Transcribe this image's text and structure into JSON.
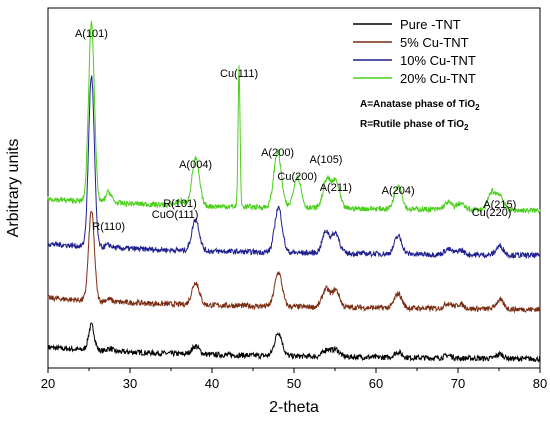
{
  "chart_data": {
    "type": "line",
    "title": "",
    "xlabel": "2-theta",
    "ylabel": "Arbitrary units",
    "xlim": [
      20,
      80
    ],
    "xticks": [
      "20",
      "30",
      "40",
      "50",
      "60",
      "70",
      "80"
    ],
    "yticks_visible": false,
    "grid": false,
    "legend_position": "top-right",
    "series": [
      {
        "name": "Pure -TNT",
        "color": "#000000",
        "baseline": 0.0,
        "peaks": [
          [
            25.3,
            0.28
          ],
          [
            27.5,
            0.03
          ],
          [
            38.0,
            0.09
          ],
          [
            48.1,
            0.26
          ],
          [
            54.0,
            0.08
          ],
          [
            55.1,
            0.08
          ],
          [
            62.7,
            0.06
          ],
          [
            68.8,
            0.03
          ],
          [
            75.1,
            0.05
          ]
        ]
      },
      {
        "name": "5% Cu-TNT",
        "color": "#7b2d12",
        "baseline": 0.55,
        "peaks": [
          [
            25.3,
            1.0
          ],
          [
            27.4,
            0.03
          ],
          [
            38.0,
            0.25
          ],
          [
            48.1,
            0.38
          ],
          [
            53.9,
            0.2
          ],
          [
            55.1,
            0.19
          ],
          [
            62.7,
            0.16
          ],
          [
            68.8,
            0.06
          ],
          [
            70.3,
            0.05
          ],
          [
            75.1,
            0.1
          ]
        ]
      },
      {
        "name": "10% Cu-TNT",
        "color": "#1f1f8f",
        "baseline": 1.15,
        "peaks": [
          [
            25.3,
            1.9
          ],
          [
            27.4,
            0.03
          ],
          [
            38.0,
            0.35
          ],
          [
            48.1,
            0.5
          ],
          [
            53.9,
            0.24
          ],
          [
            55.1,
            0.22
          ],
          [
            62.7,
            0.2
          ],
          [
            68.8,
            0.06
          ],
          [
            70.3,
            0.05
          ],
          [
            75.1,
            0.1
          ]
        ]
      },
      {
        "name": "20% Cu-TNT",
        "color": "#4ccf1c",
        "baseline": 1.65,
        "peaks": [
          [
            25.3,
            2.0
          ],
          [
            27.4,
            0.12
          ],
          [
            36.1,
            0.05
          ],
          [
            38.0,
            0.52
          ],
          [
            43.3,
            1.55
          ],
          [
            48.0,
            0.62
          ],
          [
            50.4,
            0.35
          ],
          [
            54.0,
            0.32
          ],
          [
            55.1,
            0.3
          ],
          [
            62.7,
            0.27
          ],
          [
            68.8,
            0.08
          ],
          [
            70.3,
            0.07
          ],
          [
            74.1,
            0.19
          ],
          [
            75.1,
            0.16
          ]
        ]
      }
    ],
    "annotations": [
      {
        "text": "A(101)",
        "x": 25.3
      },
      {
        "text": "R(110)",
        "x": 27.4
      },
      {
        "text": "CuO(111)",
        "x": 35.5
      },
      {
        "text": "R(101)",
        "x": 36.1
      },
      {
        "text": "A(004)",
        "x": 38.0
      },
      {
        "text": "Cu(111)",
        "x": 43.3
      },
      {
        "text": "A(200)",
        "x": 48.0
      },
      {
        "text": "Cu(200)",
        "x": 50.4
      },
      {
        "text": "A(105)",
        "x": 53.9
      },
      {
        "text": "A(211)",
        "x": 55.1
      },
      {
        "text": "A(204)",
        "x": 62.7
      },
      {
        "text": "Cu(220)",
        "x": 74.1
      },
      {
        "text": "A(215)",
        "x": 75.1
      }
    ],
    "notes": [
      {
        "prefix": "A=Anatase phase of TiO",
        "sub": "2"
      },
      {
        "prefix": "R=Rutile phase of TiO",
        "sub": "2"
      }
    ]
  }
}
